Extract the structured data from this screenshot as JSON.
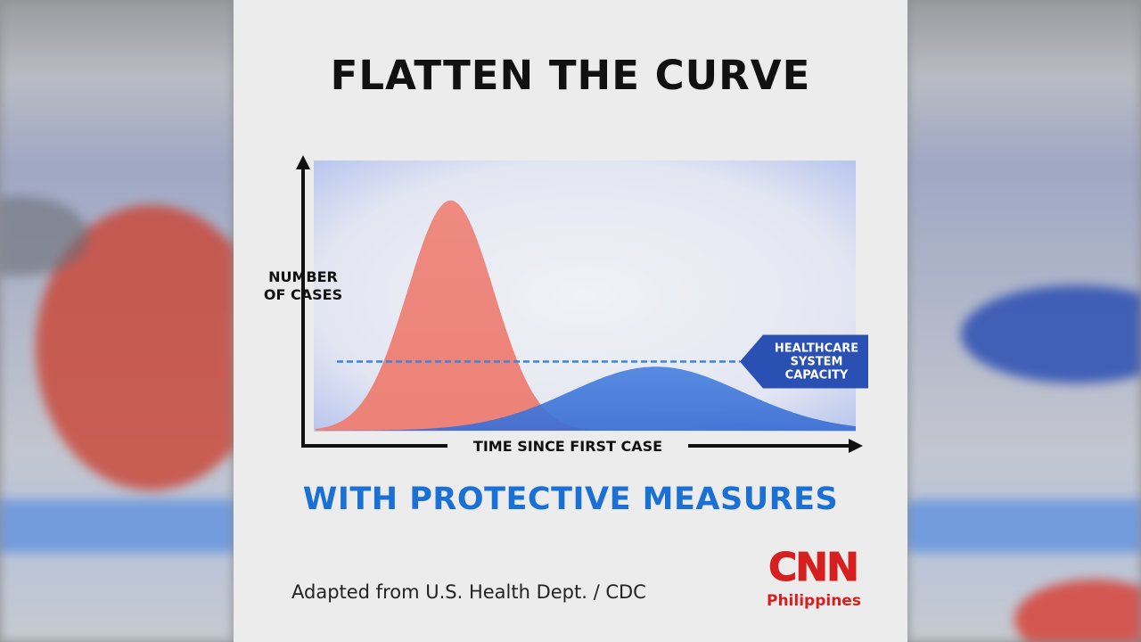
{
  "title": "FLATTEN THE CURVE",
  "subtitle": "WITH PROTECTIVE MEASURES",
  "source": "Adapted from U.S. Health Dept. / CDC",
  "logo": {
    "text": "CNN",
    "sub": "Philippines"
  },
  "colors": {
    "unmitigated": "#ee8a80",
    "mitigated": "#3d78db",
    "capacity_line": "#3a84e0",
    "capacity_label_bg": "#2b50b3",
    "title": "#111111",
    "subtitle": "#1b70d6",
    "logo": "#d62020"
  },
  "chart_data": {
    "type": "area",
    "xlabel": "TIME SINCE FIRST CASE",
    "ylabel": [
      "NUMBER",
      "OF CASES"
    ],
    "xlim": [
      0,
      100
    ],
    "ylim": [
      0,
      100
    ],
    "grid": false,
    "series": [
      {
        "kind": "unmitigated",
        "peak_x": 25,
        "peak_y": 90,
        "spread": 8
      },
      {
        "kind": "mitigated",
        "peak_x": 63,
        "peak_y": 25,
        "spread": 16
      }
    ],
    "capacity": {
      "value": 27,
      "label": [
        "HEALTHCARE",
        "SYSTEM",
        "CAPACITY"
      ]
    }
  }
}
